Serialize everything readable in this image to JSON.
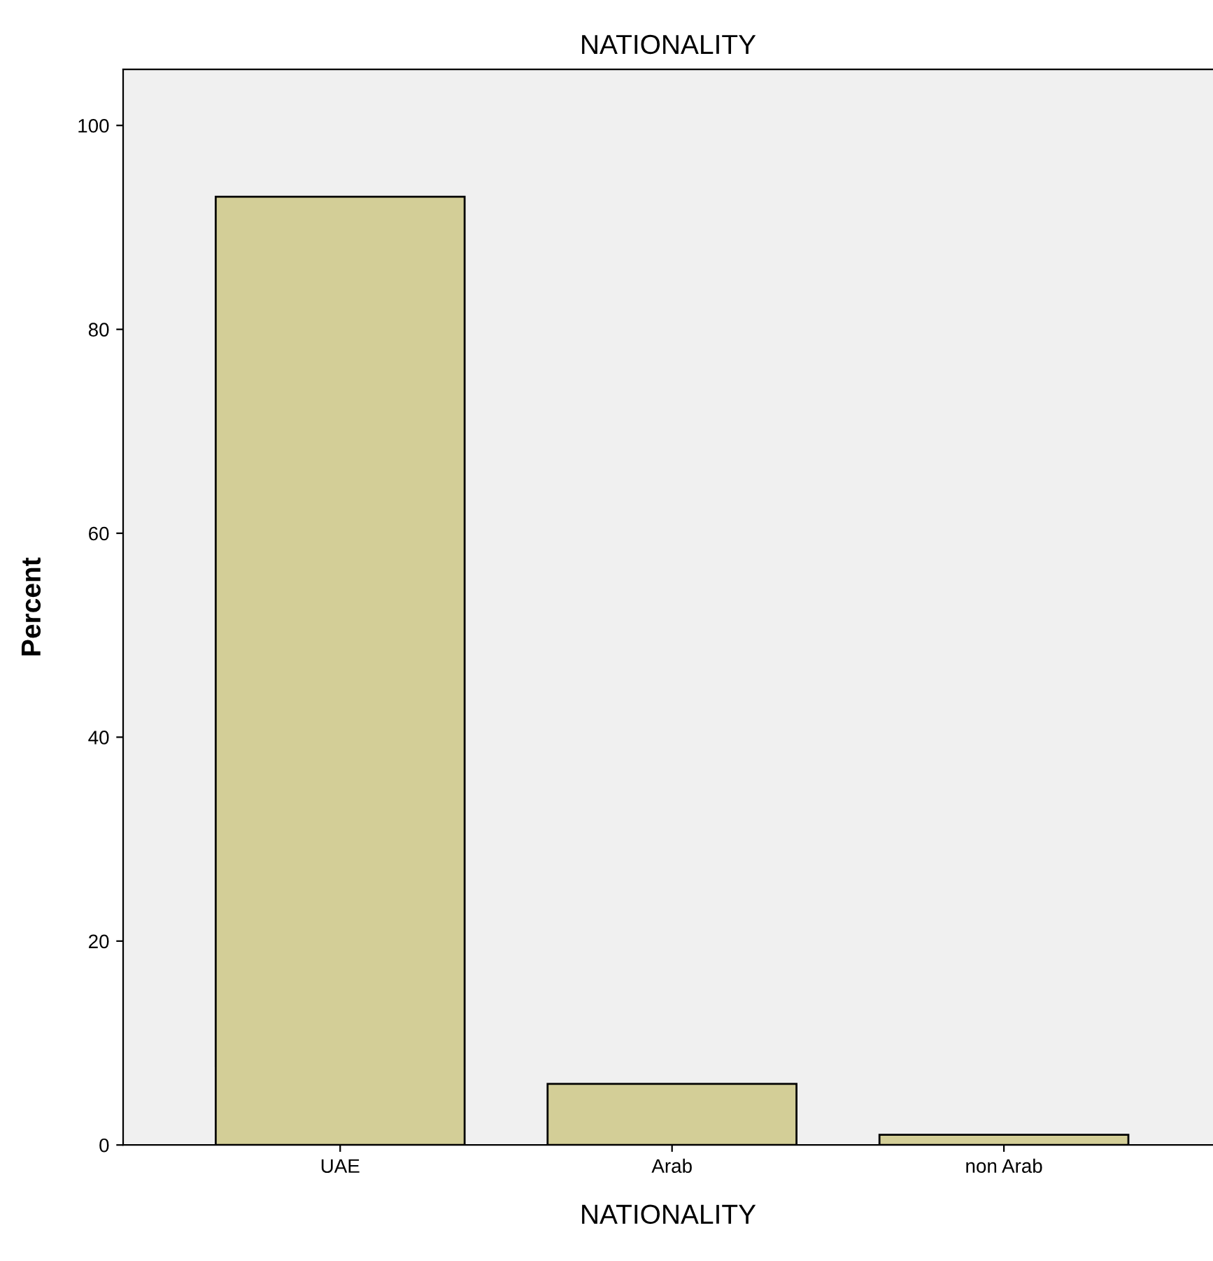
{
  "chart_data": {
    "type": "bar",
    "title": "NATIONALITY",
    "xlabel": "NATIONALITY",
    "ylabel": "Percent",
    "categories": [
      "UAE",
      "Arab",
      "non Arab"
    ],
    "values": [
      93,
      6,
      1
    ],
    "color": "#d3ce97",
    "ylim": [
      0,
      105.5
    ],
    "yticks": [
      0,
      20,
      40,
      60,
      80,
      100
    ],
    "grid": false,
    "legend": false
  }
}
